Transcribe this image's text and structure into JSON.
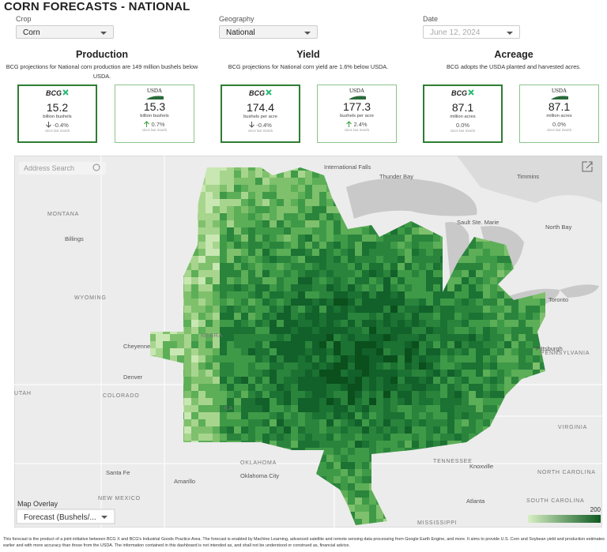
{
  "header": {
    "title": "CORN FORECASTS - NATIONAL"
  },
  "filters": [
    {
      "label": "Crop",
      "value": "Corn"
    },
    {
      "label": "Geography",
      "value": "National"
    },
    {
      "label": "Date",
      "value": "June 12, 2024"
    }
  ],
  "sections": [
    {
      "title": "Production",
      "note": "BCG projections for National corn production are 149 million bushels below USDA.",
      "cards": [
        {
          "logo": "BCG",
          "value": "15.2",
          "unit": "billion bushels",
          "change": "-0.4%",
          "note": "since last month"
        },
        {
          "logo": "USDA",
          "value": "15.3",
          "unit": "billion bushels",
          "change": "0.7%",
          "note": "since last month"
        }
      ]
    },
    {
      "title": "Yield",
      "note": "BCG projections for National corn yield are 1.6% below USDA.",
      "cards": [
        {
          "logo": "BCG",
          "value": "174.4",
          "unit": "bushels per acre",
          "change": "-0.4%",
          "note": "since last month"
        },
        {
          "logo": "USDA",
          "value": "177.3",
          "unit": "bushels per acre",
          "change": "2.4%",
          "note": "since last month"
        }
      ]
    },
    {
      "title": "Acreage",
      "note": "BCG adopts the USDA planted and harvested acres.",
      "cards": [
        {
          "logo": "BCG",
          "value": "87.1",
          "unit": "million acres",
          "change": "0.0%",
          "note": "since last month"
        },
        {
          "logo": "USDA",
          "value": "87.1",
          "unit": "million acres",
          "change": "0.0%",
          "note": "since last month"
        }
      ]
    }
  ],
  "map": {
    "search": "Address Search",
    "overlay_label": "Map Overlay",
    "overlay_value": "Forecast (Bushels/...",
    "legend_max": "200",
    "places": [
      "International Falls",
      "Thunder Bay",
      "Timmins",
      "Sault Ste. Marie",
      "North Bay",
      "Toronto",
      "MONTANA",
      "Billings",
      "WYOMING",
      "Cheyenne",
      "NEBRA",
      "Denver",
      "COLORADO",
      "UTAH",
      "KA",
      "PENNSYLVANIA",
      "Pittsburgh",
      "VIRGINIA",
      "TENNESSEE",
      "Knoxville",
      "NORTH CAROLINA",
      "OKLAHOMA",
      "Oklahoma City",
      "Santa Fe",
      "Amarillo",
      "NEW MEXICO",
      "Atlanta",
      "SOUTH CAROLINA",
      "MISSISSIPPI"
    ]
  },
  "footer": "This forecast is the product of a joint initiative between BCG X and BCG's Industrial Goods Practice Area. The forecast is enabled by Machine Learning, advanced satellite and remote sensing data processing from Google Earth Engine, and more. It aims to provide U.S. Corn and Soybean yield and production estimates earlier and with more accuracy than those from the USDA. The information contained in this dashboard is not intended as, and shall not be understood or construed as, financial advice."
}
